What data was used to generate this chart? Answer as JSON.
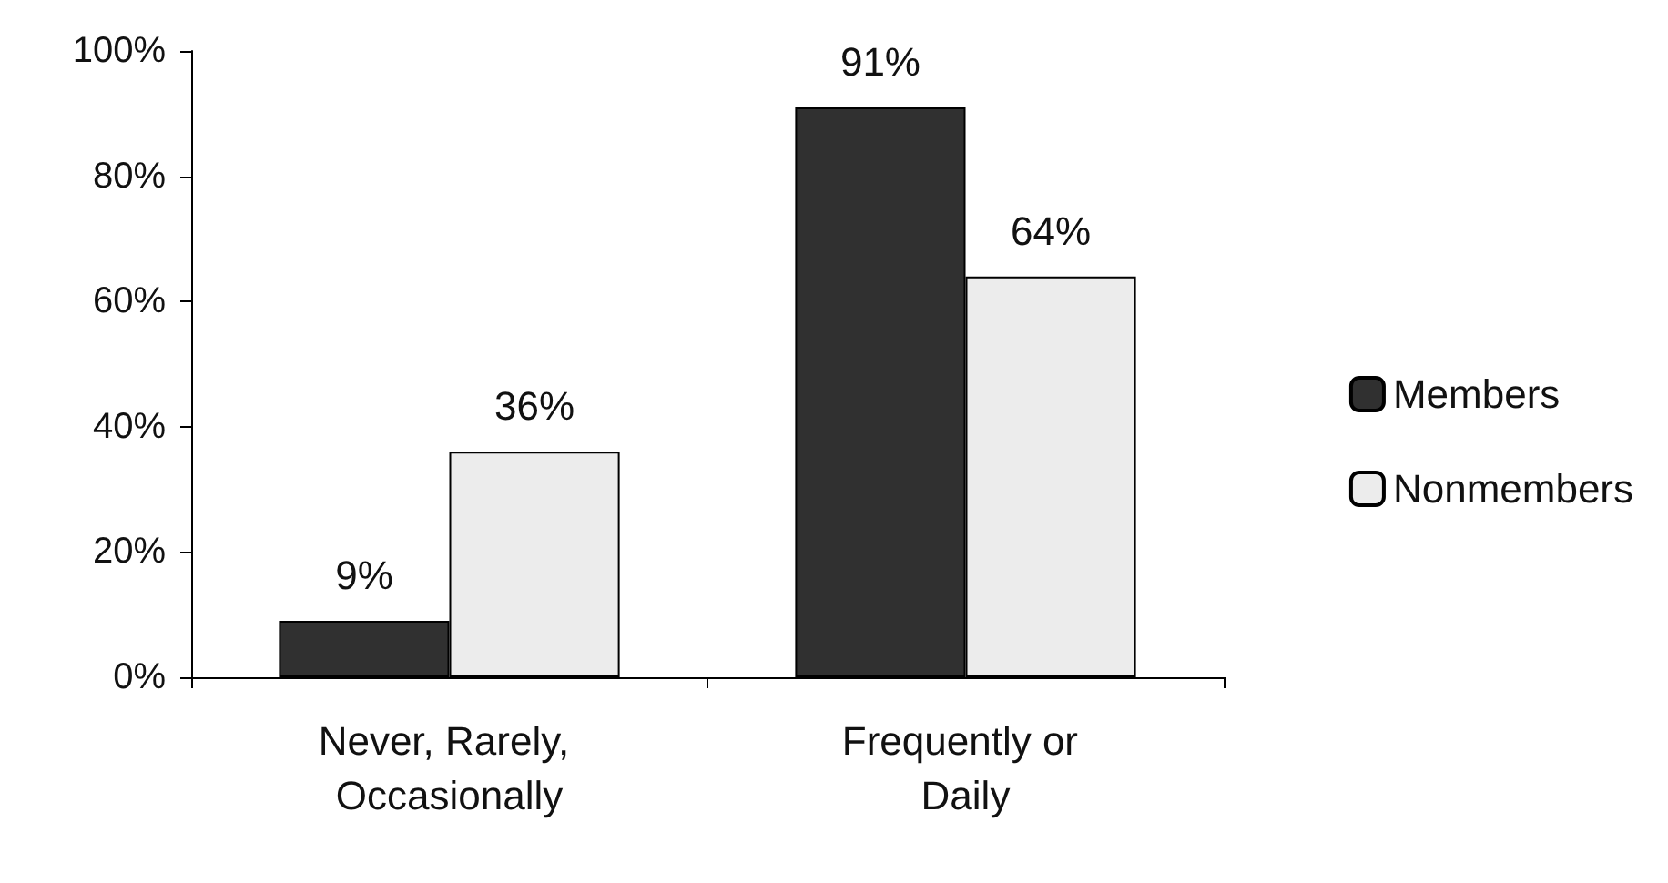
{
  "chart_data": {
    "type": "bar",
    "categories": [
      "Never, Rarely, Occasionally",
      "Frequently or Daily"
    ],
    "series": [
      {
        "name": "Members",
        "color": "#303030",
        "values": [
          9,
          91
        ],
        "value_labels": [
          "9%",
          "91%"
        ]
      },
      {
        "name": "Nonmembers",
        "color": "#ececec",
        "values": [
          36,
          64
        ],
        "value_labels": [
          "36%",
          "64%"
        ]
      }
    ],
    "ylim": [
      0,
      100
    ],
    "yticks": [
      {
        "value": 0,
        "label": "0%"
      },
      {
        "value": 20,
        "label": "20%"
      },
      {
        "value": 40,
        "label": "40%"
      },
      {
        "value": 60,
        "label": "60%"
      },
      {
        "value": 80,
        "label": "80%"
      },
      {
        "value": 100,
        "label": "100%"
      }
    ],
    "grid": false,
    "legend": "right"
  }
}
